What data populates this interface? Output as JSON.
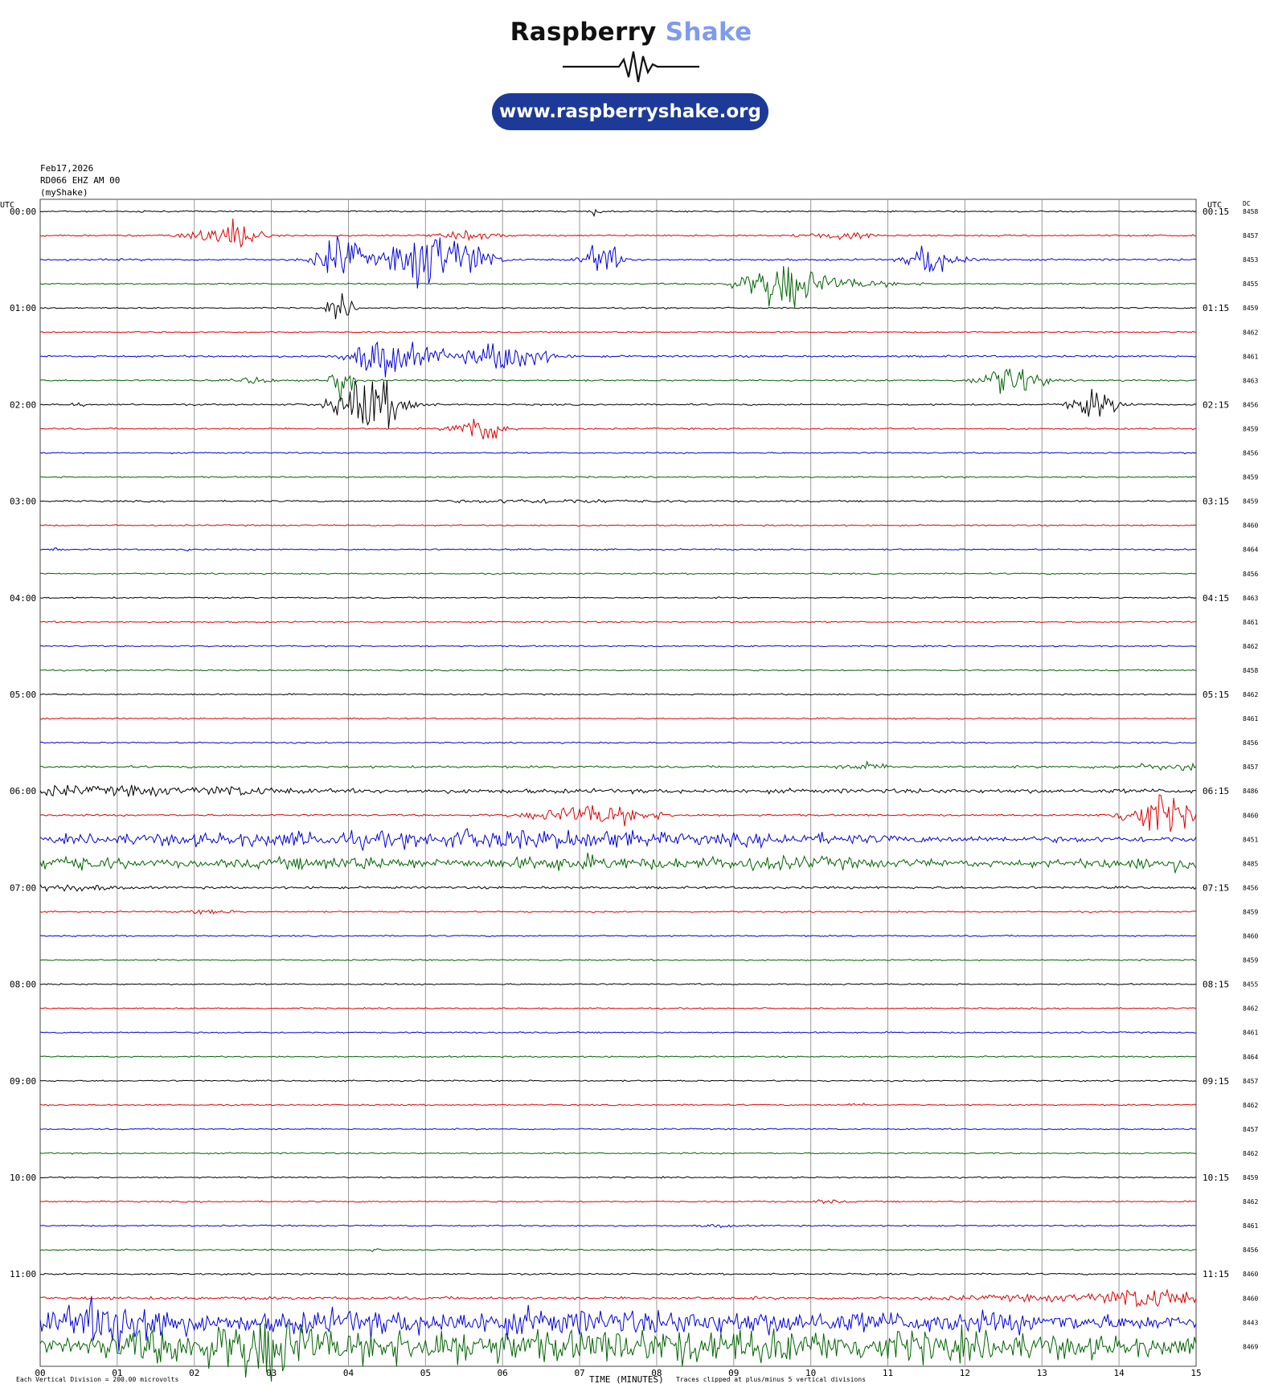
{
  "logo": {
    "brand": "Raspberry",
    "brand_accent": "Shake",
    "url": "www.raspberryshake.org"
  },
  "header": {
    "date": "Feb17,2026",
    "channel": "RD066 EHZ AM 00",
    "source": "(myShake)"
  },
  "labels": {
    "left_axis": "UTC",
    "right_axis": "UTC",
    "dc_header": "DC"
  },
  "footer": {
    "scale_note": "Each Vertical Division = 200.00 microvolts",
    "xlabel": "TIME (MINUTES)",
    "clip_note": "Traces clipped at plus/minus 5 vertical divisions"
  },
  "colors": {
    "cycle": [
      "#000000",
      "#e00000",
      "#0000dd",
      "#006400"
    ],
    "grid": "#999999"
  },
  "chart_data": {
    "type": "line",
    "xlabel": "TIME (MINUTES)",
    "xlim": [
      0,
      15
    ],
    "x_ticks": [
      "00",
      "01",
      "02",
      "03",
      "04",
      "05",
      "06",
      "07",
      "08",
      "09",
      "10",
      "11",
      "12",
      "13",
      "14",
      "15"
    ],
    "left_time_labels": [
      "00:00",
      "01:00",
      "02:00",
      "03:00",
      "04:00",
      "05:00",
      "06:00",
      "07:00",
      "08:00",
      "09:00",
      "10:00",
      "11:00"
    ],
    "right_time_labels": [
      "00:15",
      "01:15",
      "02:15",
      "03:15",
      "04:15",
      "05:15",
      "06:15",
      "07:15",
      "08:15",
      "09:15",
      "10:15",
      "11:15"
    ],
    "dc_offsets": [
      8458,
      8457,
      8453,
      8455,
      8459,
      8462,
      8461,
      8463,
      8456,
      8459,
      8456,
      8459,
      8459,
      8460,
      8464,
      8456,
      8463,
      8461,
      8462,
      8458,
      8462,
      8461,
      8456,
      8457,
      8486,
      8460,
      8451,
      8485,
      8456,
      8459,
      8460,
      8459,
      8455,
      8462,
      8461,
      8464,
      8457,
      8462,
      8457,
      8462,
      8459,
      8462,
      8461,
      8456,
      8460,
      8460,
      8443,
      8469
    ],
    "series": [
      {
        "noise": 0.6,
        "events": [
          [
            1.3,
            1.0,
            0.04
          ],
          [
            7.2,
            3.5,
            0.05
          ]
        ]
      },
      {
        "noise": 0.7,
        "events": [
          [
            2.3,
            8.0,
            0.25
          ],
          [
            2.6,
            10.0,
            0.15
          ],
          [
            5.6,
            3.0,
            0.25
          ],
          [
            10.4,
            3.0,
            0.3
          ]
        ]
      },
      {
        "noise": 0.8,
        "events": [
          [
            3.9,
            20.0,
            0.2
          ],
          [
            5.0,
            25.0,
            0.3
          ],
          [
            5.6,
            12.0,
            0.2
          ],
          [
            7.3,
            15.0,
            0.15
          ],
          [
            11.5,
            14.0,
            0.15
          ],
          [
            11.8,
            4.0,
            0.25
          ]
        ]
      },
      {
        "noise": 0.6,
        "events": [
          [
            9.6,
            18.0,
            0.3
          ],
          [
            10.1,
            5.0,
            0.6
          ]
        ]
      },
      {
        "noise": 0.6,
        "events": [
          [
            3.9,
            12.0,
            0.1
          ]
        ]
      },
      {
        "noise": 0.6,
        "events": []
      },
      {
        "noise": 0.8,
        "events": [
          [
            4.4,
            16.0,
            0.25
          ],
          [
            5.0,
            6.0,
            0.4
          ],
          [
            6.1,
            14.0,
            0.3
          ]
        ]
      },
      {
        "noise": 0.7,
        "events": [
          [
            2.8,
            3.0,
            0.15
          ],
          [
            3.9,
            18.0,
            0.1
          ],
          [
            12.6,
            14.0,
            0.25
          ]
        ]
      },
      {
        "noise": 0.7,
        "events": [
          [
            0.5,
            1.5,
            0.08
          ],
          [
            4.3,
            24.0,
            0.3
          ],
          [
            13.7,
            12.0,
            0.2
          ]
        ]
      },
      {
        "noise": 0.7,
        "events": [
          [
            5.7,
            14.0,
            0.2
          ]
        ]
      },
      {
        "noise": 0.6,
        "events": []
      },
      {
        "noise": 0.6,
        "events": []
      },
      {
        "noise": 0.7,
        "events": [
          [
            6.6,
            1.5,
            0.8
          ]
        ]
      },
      {
        "noise": 0.6,
        "events": []
      },
      {
        "noise": 0.6,
        "events": [
          [
            0.2,
            1.2,
            0.03
          ],
          [
            1.9,
            1.0,
            0.03
          ]
        ]
      },
      {
        "noise": 0.6,
        "events": []
      },
      {
        "noise": 0.6,
        "events": []
      },
      {
        "noise": 0.6,
        "events": []
      },
      {
        "noise": 0.6,
        "events": []
      },
      {
        "noise": 0.6,
        "events": [
          [
            6.05,
            1.5,
            0.08
          ]
        ]
      },
      {
        "noise": 0.6,
        "events": []
      },
      {
        "noise": 0.6,
        "events": []
      },
      {
        "noise": 0.6,
        "events": []
      },
      {
        "noise": 0.9,
        "events": [
          [
            10.7,
            3.0,
            0.2
          ],
          [
            14.8,
            2.5,
            0.6
          ]
        ]
      },
      {
        "noise": 1.8,
        "events": [
          [
            0.1,
            3.5,
            0.5
          ],
          [
            1.3,
            3.0,
            0.3
          ],
          [
            2.5,
            3.0,
            0.4
          ]
        ]
      },
      {
        "noise": 0.8,
        "events": [
          [
            7.2,
            9.0,
            0.5
          ],
          [
            14.5,
            18.0,
            0.3
          ]
        ]
      },
      {
        "noise": 2.5,
        "events": [
          [
            2.0,
            3.0,
            1.2
          ],
          [
            4.1,
            4.0,
            0.8
          ],
          [
            5.8,
            6.0,
            0.5
          ],
          [
            7.2,
            6.0,
            0.6
          ],
          [
            9.5,
            3.0,
            1.0
          ]
        ]
      },
      {
        "noise": 3.0,
        "events": [
          [
            0.3,
            4.0,
            0.5
          ],
          [
            4.0,
            3.0,
            0.8
          ],
          [
            6.9,
            4.0,
            0.6
          ],
          [
            9.5,
            3.0,
            1.0
          ],
          [
            14.6,
            3.0,
            0.6
          ]
        ]
      },
      {
        "noise": 1.0,
        "events": [
          [
            0.3,
            3.0,
            0.4
          ]
        ]
      },
      {
        "noise": 0.6,
        "events": [
          [
            2.2,
            1.6,
            0.2
          ]
        ]
      },
      {
        "noise": 0.6,
        "events": []
      },
      {
        "noise": 0.6,
        "events": []
      },
      {
        "noise": 0.6,
        "events": []
      },
      {
        "noise": 0.6,
        "events": []
      },
      {
        "noise": 0.6,
        "events": []
      },
      {
        "noise": 0.6,
        "events": []
      },
      {
        "noise": 0.6,
        "events": []
      },
      {
        "noise": 0.6,
        "events": [
          [
            10.6,
            2.2,
            0.08
          ]
        ]
      },
      {
        "noise": 0.6,
        "events": []
      },
      {
        "noise": 0.6,
        "events": []
      },
      {
        "noise": 0.6,
        "events": []
      },
      {
        "noise": 0.6,
        "events": [
          [
            10.2,
            1.2,
            0.15
          ]
        ]
      },
      {
        "noise": 0.6,
        "events": [
          [
            8.8,
            1.2,
            0.15
          ]
        ]
      },
      {
        "noise": 0.6,
        "events": [
          [
            4.3,
            1.2,
            0.08
          ]
        ]
      },
      {
        "noise": 0.7,
        "events": []
      },
      {
        "noise": 1.2,
        "events": [
          [
            14.4,
            8.0,
            0.4
          ],
          [
            13.2,
            2.0,
            1.0
          ]
        ]
      },
      {
        "noise": 5.0,
        "events": [
          [
            1.2,
            15.0,
            0.4
          ],
          [
            0.8,
            8.0,
            0.6
          ],
          [
            4.0,
            6.0,
            1.0
          ],
          [
            6.5,
            6.0,
            1.0
          ],
          [
            9.0,
            5.0,
            1.0
          ],
          [
            12.0,
            4.0,
            1.5
          ]
        ]
      },
      {
        "noise": 6.0,
        "events": [
          [
            2.9,
            22.0,
            0.5
          ],
          [
            1.5,
            10.0,
            0.5
          ],
          [
            5.0,
            9.0,
            1.0
          ],
          [
            8.0,
            8.0,
            1.5
          ],
          [
            11.5,
            7.0,
            2.0
          ]
        ]
      }
    ]
  }
}
